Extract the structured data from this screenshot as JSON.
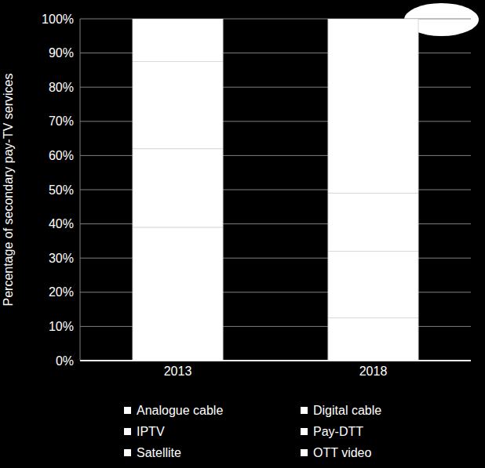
{
  "chart_data": {
    "type": "bar",
    "stacked": true,
    "grid": true,
    "legend": "bottom",
    "y_label": "Percentage of secondary pay-TV services",
    "categories": [
      "2013",
      "2018"
    ],
    "ylim": [
      0,
      100
    ],
    "yticks": [
      {
        "value": 0,
        "label": "0%"
      },
      {
        "value": 10,
        "label": "10%"
      },
      {
        "value": 20,
        "label": "20%"
      },
      {
        "value": 30,
        "label": "30%"
      },
      {
        "value": 40,
        "label": "40%"
      },
      {
        "value": 50,
        "label": "50%"
      },
      {
        "value": 60,
        "label": "60%"
      },
      {
        "value": 70,
        "label": "70%"
      },
      {
        "value": 80,
        "label": "80%"
      },
      {
        "value": 90,
        "label": "90%"
      },
      {
        "value": 100,
        "label": "100%"
      }
    ],
    "series": [
      {
        "name": "Analogue cable",
        "color": "#ffffff",
        "values": [
          0,
          0
        ]
      },
      {
        "name": "Digital cable",
        "color": "#ffffff",
        "values": [
          39,
          12.5
        ]
      },
      {
        "name": "IPTV",
        "color": "#ffffff",
        "values": [
          23,
          19.5
        ]
      },
      {
        "name": "Pay-DTT",
        "color": "#ffffff",
        "values": [
          0,
          0
        ]
      },
      {
        "name": "Satellite",
        "color": "#ffffff",
        "values": [
          25.5,
          17
        ]
      },
      {
        "name": "OTT video",
        "color": "#ffffff",
        "values": [
          12.5,
          51
        ]
      }
    ]
  }
}
